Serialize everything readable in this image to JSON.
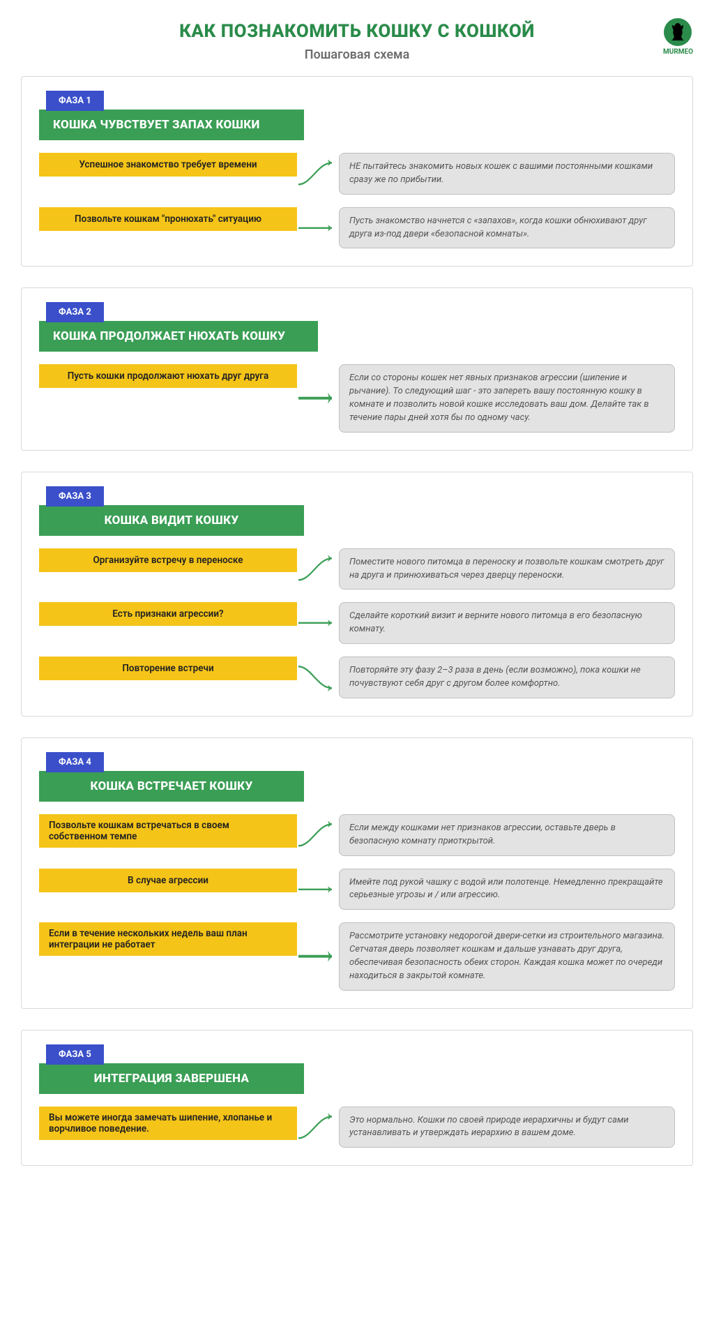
{
  "colors": {
    "title": "#2a8b4a",
    "subtitle": "#6e6e6e",
    "badge_bg": "#3a4fc9",
    "phase_title_bg": "#3a9e55",
    "step_bg": "#f5c418",
    "note_bg": "#e3e3e3",
    "arrow": "#3a9e55",
    "logo_circle": "#2a8b4a"
  },
  "fonts": {
    "title_size": 26,
    "subtitle_size": 18,
    "phase_title_size": 17,
    "badge_size": 13,
    "step_size": 13.5,
    "note_size": 13
  },
  "header": {
    "title": "КАК ПОЗНАКОМИТЬ КОШКУ С КОШКОЙ",
    "subtitle": "Пошаговая схема",
    "logo_text": "MURMEO"
  },
  "phases": [
    {
      "badge": "ФАЗА 1",
      "title": "КОШКА ЧУВСТВУЕТ ЗАПАХ КОШКИ",
      "title_width": 380,
      "rows": [
        {
          "step": "Успешное знакомство требует времени",
          "note": "НЕ пытайтесь знакомить новых кошек с вашими постоянными кошками сразу же по прибытии.",
          "arrow": "up"
        },
        {
          "step": "Позвольте кошкам \"пронюхать\" ситуацию",
          "note": "Пусть знакомство начнется с «запахов», когда кошки обнюхивают друг друга из-под двери «безопасной комнаты».",
          "arrow": "mid"
        }
      ]
    },
    {
      "badge": "ФАЗА 2",
      "title": "КОШКА ПРОДОЛЖАЕТ НЮХАТЬ КОШКУ",
      "title_width": 400,
      "rows": [
        {
          "step": "Пусть кошки продолжают нюхать друг друга",
          "note": "Если со стороны кошек нет явных признаков агрессии (шипение и рычание). То следующий шаг - это запереть вашу постоянную кошку в комнате и позволить новой кошке исследовать ваш дом. Делайте так в течение пары дней хотя бы по одному часу.",
          "arrow": "mid"
        }
      ]
    },
    {
      "badge": "ФАЗА 3",
      "title": "КОШКА ВИДИТ КОШКУ",
      "title_width": 380,
      "title_align": "center",
      "rows": [
        {
          "step": "Организуйте встречу в переноске",
          "note": "Поместите нового питомца в переноску и позвольте кошкам смотреть друг на друга и принюхиваться через дверцу переноски.",
          "arrow": "up"
        },
        {
          "step": "Есть признаки агрессии?",
          "note": "Сделайте короткий визит и верните нового питомца в его безопасную комнату.",
          "arrow": "mid"
        },
        {
          "step": "Повторение встречи",
          "note": "Повторяйте эту фазу 2–3 раза в день (если возможно), пока кошки не почувствуют себя друг с другом более комфортно.",
          "arrow": "down"
        }
      ]
    },
    {
      "badge": "ФАЗА 4",
      "title": "КОШКА ВСТРЕЧАЕТ КОШКУ",
      "title_width": 380,
      "title_align": "center",
      "rows": [
        {
          "step": "Позвольте кошкам встречаться в своем собственном темпе",
          "step_align": "left",
          "note": "Если между кошками нет признаков агрессии, оставьте дверь в безопасную комнату приоткрытой.",
          "arrow": "up"
        },
        {
          "step": "В случае агрессии",
          "note": "Имейте под рукой чашку с водой или полотенце. Немедленно прекращайте серьезные угрозы и / или агрессию.",
          "arrow": "mid"
        },
        {
          "step": "Если в течение нескольких недель ваш план интеграции не работает",
          "step_align": "left",
          "note": "Рассмотрите установку недорогой двери-сетки из строительного магазина. Сетчатая дверь позволяет кошкам и дальше узнавать друг друга, обеспечивая безопасность обеих сторон. Каждая кошка может по очереди находиться в закрытой комнате.",
          "arrow": "mid"
        }
      ]
    },
    {
      "badge": "ФАЗА 5",
      "title": "ИНТЕГРАЦИЯ ЗАВЕРШЕНА",
      "title_width": 380,
      "title_align": "center",
      "rows": [
        {
          "step": "Вы можете иногда замечать шипение, хлопанье и ворчливое поведение.",
          "step_align": "left",
          "note": "Это нормально. Кошки по своей природе иерархичны и будут сами устанавливать и утверждать иерархию в вашем доме.",
          "arrow": "up"
        }
      ]
    }
  ]
}
